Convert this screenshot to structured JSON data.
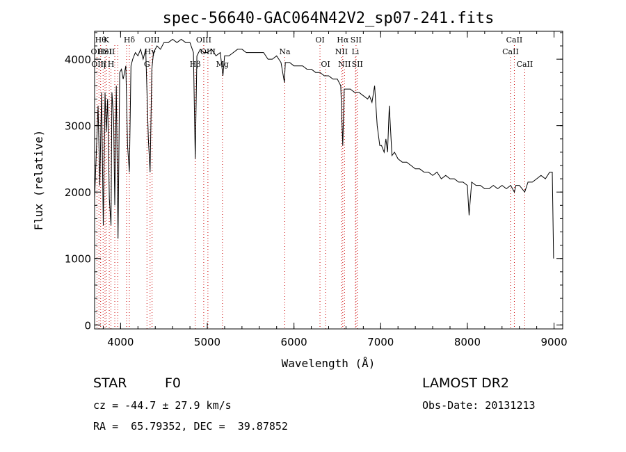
{
  "chart_data": {
    "type": "line",
    "title": "spec-56640-GAC064N42V2_sp07-241.fits",
    "xlabel": "Wavelength (Å)",
    "ylabel": "Flux (relative)",
    "xlim": [
      3700,
      9100
    ],
    "ylim": [
      -60,
      4420
    ],
    "xticks": [
      4000,
      5000,
      6000,
      7000,
      8000,
      9000
    ],
    "yticks": [
      0,
      1000,
      2000,
      3000,
      4000
    ],
    "grid": false,
    "line_color": "#000000",
    "marker_color": "#cc0000",
    "spectrum": {
      "x": [
        3700,
        3720,
        3740,
        3760,
        3780,
        3800,
        3820,
        3835,
        3850,
        3870,
        3889,
        3900,
        3920,
        3933,
        3950,
        3970,
        3990,
        4010,
        4030,
        4060,
        4080,
        4101,
        4120,
        4140,
        4170,
        4200,
        4230,
        4260,
        4290,
        4320,
        4340,
        4360,
        4380,
        4420,
        4460,
        4500,
        4550,
        4600,
        4650,
        4700,
        4750,
        4800,
        4840,
        4861,
        4880,
        4920,
        4960,
        5000,
        5050,
        5100,
        5150,
        5180,
        5200,
        5250,
        5300,
        5350,
        5400,
        5450,
        5500,
        5550,
        5600,
        5650,
        5700,
        5750,
        5800,
        5850,
        5890,
        5900,
        5950,
        6000,
        6050,
        6100,
        6150,
        6200,
        6250,
        6300,
        6350,
        6400,
        6450,
        6500,
        6540,
        6563,
        6580,
        6600,
        6650,
        6700,
        6750,
        6800,
        6850,
        6870,
        6900,
        6930,
        6960,
        6990,
        7010,
        7040,
        7060,
        7080,
        7100,
        7130,
        7160,
        7200,
        7250,
        7300,
        7350,
        7400,
        7450,
        7500,
        7550,
        7600,
        7650,
        7700,
        7750,
        7800,
        7850,
        7900,
        7950,
        8000,
        8020,
        8050,
        8100,
        8150,
        8200,
        8250,
        8300,
        8350,
        8400,
        8450,
        8500,
        8542,
        8560,
        8600,
        8662,
        8700,
        8750,
        8800,
        8850,
        8900,
        8950,
        8980,
        8995
      ],
      "y": [
        1900,
        2600,
        3300,
        2100,
        3500,
        1500,
        3500,
        2900,
        3400,
        1900,
        1500,
        3500,
        3100,
        1800,
        3600,
        1300,
        3800,
        3850,
        3700,
        3900,
        2700,
        2300,
        3900,
        4000,
        4100,
        4050,
        4150,
        4000,
        4150,
        2800,
        2300,
        3850,
        4100,
        4200,
        4150,
        4250,
        4250,
        4300,
        4250,
        4300,
        4250,
        4250,
        4100,
        2500,
        4050,
        4150,
        4100,
        4100,
        4150,
        4050,
        4100,
        3750,
        4050,
        4050,
        4100,
        4150,
        4150,
        4100,
        4100,
        4100,
        4100,
        4100,
        4000,
        4000,
        4050,
        3950,
        3650,
        3950,
        3950,
        3900,
        3900,
        3900,
        3850,
        3850,
        3800,
        3800,
        3750,
        3750,
        3700,
        3700,
        3600,
        2700,
        3550,
        3550,
        3550,
        3500,
        3500,
        3450,
        3400,
        3450,
        3350,
        3600,
        3000,
        2700,
        2700,
        2600,
        2800,
        2600,
        3300,
        2550,
        2600,
        2500,
        2450,
        2450,
        2400,
        2350,
        2350,
        2300,
        2300,
        2250,
        2300,
        2200,
        2250,
        2200,
        2200,
        2150,
        2150,
        2100,
        1650,
        2150,
        2100,
        2100,
        2050,
        2050,
        2100,
        2050,
        2100,
        2050,
        2100,
        2000,
        2100,
        2100,
        2000,
        2150,
        2150,
        2200,
        2250,
        2200,
        2300,
        2300,
        1000
      ]
    },
    "line_markers": [
      {
        "wl": 3727,
        "label": "OII",
        "row": 1
      },
      {
        "wl": 3750,
        "label": "OIII",
        "row": 2
      },
      {
        "wl": 3770,
        "label": "Hθ",
        "row": 0
      },
      {
        "wl": 3798,
        "label": "η",
        "row": 2
      },
      {
        "wl": 3820,
        "label": "HeI",
        "row": 1
      },
      {
        "wl": 3835,
        "label": "K",
        "row": 0
      },
      {
        "wl": 3869,
        "label": "SII",
        "row": 1
      },
      {
        "wl": 3889,
        "label": "H",
        "row": 2
      },
      {
        "wl": 3933,
        "label": "",
        "row": 0
      },
      {
        "wl": 3968,
        "label": "",
        "row": 0
      },
      {
        "wl": 4069,
        "label": "",
        "row": 0
      },
      {
        "wl": 4101,
        "label": "Hδ",
        "row": 0
      },
      {
        "wl": 4304,
        "label": "G",
        "row": 2
      },
      {
        "wl": 4340,
        "label": "Hγ",
        "row": 1
      },
      {
        "wl": 4363,
        "label": "OIII",
        "row": 0
      },
      {
        "wl": 4861,
        "label": "Hβ",
        "row": 2
      },
      {
        "wl": 4959,
        "label": "OIII",
        "row": 0
      },
      {
        "wl": 5007,
        "label": "OIII",
        "row": 1
      },
      {
        "wl": 5175,
        "label": "Mg",
        "row": 2
      },
      {
        "wl": 5894,
        "label": "Na",
        "row": 1
      },
      {
        "wl": 6300,
        "label": "OI",
        "row": 0
      },
      {
        "wl": 6364,
        "label": "OI",
        "row": 2
      },
      {
        "wl": 6548,
        "label": "NII",
        "row": 1
      },
      {
        "wl": 6563,
        "label": "Hα",
        "row": 0
      },
      {
        "wl": 6583,
        "label": "NII",
        "row": 2
      },
      {
        "wl": 6708,
        "label": "Li",
        "row": 1
      },
      {
        "wl": 6716,
        "label": "SII",
        "row": 0
      },
      {
        "wl": 6731,
        "label": "SII",
        "row": 2
      },
      {
        "wl": 8498,
        "label": "CaII",
        "row": 1
      },
      {
        "wl": 8542,
        "label": "CaII",
        "row": 0
      },
      {
        "wl": 8662,
        "label": "CaII",
        "row": 2
      }
    ]
  },
  "info": {
    "object_type": "STAR",
    "subclass": "F0",
    "survey": "LAMOST DR2",
    "redshift_line": "cz = -44.7 ± 27.9 km/s",
    "obs_date_line": "Obs-Date: 20131213",
    "coords_line": "RA =  65.79352, DEC =  39.87852"
  }
}
